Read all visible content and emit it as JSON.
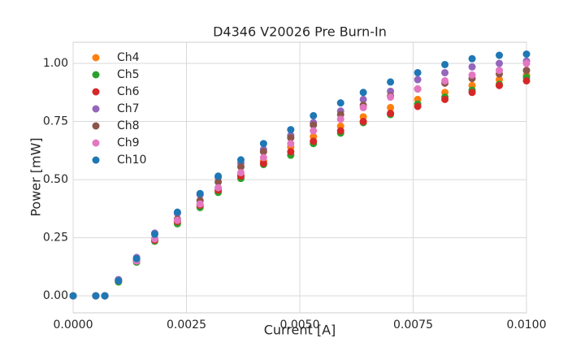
{
  "chart_data": {
    "type": "scatter",
    "title": "D4346 V20026 Pre Burn-In",
    "x_label": "Current [A]",
    "y_label": "Power [mW]",
    "x": [
      0,
      0.0005,
      0.0007,
      0.001,
      0.0014,
      0.0018,
      0.0023,
      0.0028,
      0.0032,
      0.0037,
      0.0042,
      0.0048,
      0.0053,
      0.0059,
      0.0064,
      0.007,
      0.0076,
      0.0082,
      0.0088,
      0.0094,
      0.01
    ],
    "series": [
      {
        "name": "Ch4",
        "color": "#ff7f0e",
        "values": [
          0,
          0,
          0,
          0.06,
          0.15,
          0.24,
          0.315,
          0.385,
          0.455,
          0.52,
          0.58,
          0.64,
          0.685,
          0.73,
          0.77,
          0.81,
          0.845,
          0.875,
          0.905,
          0.93,
          0.95
        ]
      },
      {
        "name": "Ch5",
        "color": "#2ca02c",
        "values": [
          0,
          0,
          0,
          0.06,
          0.145,
          0.235,
          0.31,
          0.38,
          0.445,
          0.505,
          0.565,
          0.605,
          0.655,
          0.7,
          0.745,
          0.78,
          0.825,
          0.855,
          0.885,
          0.91,
          0.94
        ]
      },
      {
        "name": "Ch6",
        "color": "#d62728",
        "values": [
          0,
          0,
          0,
          0.065,
          0.15,
          0.24,
          0.32,
          0.39,
          0.455,
          0.515,
          0.57,
          0.62,
          0.665,
          0.71,
          0.75,
          0.785,
          0.815,
          0.845,
          0.875,
          0.905,
          0.925
        ]
      },
      {
        "name": "Ch7",
        "color": "#9467bd",
        "values": [
          0,
          0,
          0,
          0.07,
          0.165,
          0.27,
          0.355,
          0.435,
          0.51,
          0.57,
          0.63,
          0.69,
          0.745,
          0.795,
          0.845,
          0.88,
          0.93,
          0.96,
          0.985,
          1.0,
          1.01
        ]
      },
      {
        "name": "Ch8",
        "color": "#8c564b",
        "values": [
          0,
          0,
          0,
          0.065,
          0.155,
          0.245,
          0.33,
          0.41,
          0.49,
          0.555,
          0.62,
          0.68,
          0.735,
          0.78,
          0.82,
          0.86,
          0.89,
          0.915,
          0.935,
          0.955,
          0.97
        ]
      },
      {
        "name": "Ch9",
        "color": "#e377c2",
        "values": [
          0,
          0,
          0,
          0.065,
          0.15,
          0.245,
          0.325,
          0.395,
          0.465,
          0.53,
          0.595,
          0.655,
          0.71,
          0.76,
          0.81,
          0.855,
          0.89,
          0.925,
          0.95,
          0.97,
          1.0
        ]
      },
      {
        "name": "Ch10",
        "color": "#1f77b4",
        "values": [
          0,
          0,
          0,
          0.065,
          0.16,
          0.265,
          0.36,
          0.44,
          0.515,
          0.585,
          0.655,
          0.715,
          0.775,
          0.83,
          0.875,
          0.92,
          0.96,
          0.995,
          1.02,
          1.035,
          1.04
        ]
      }
    ],
    "xlim": [
      0,
      0.01
    ],
    "ylim": [
      -0.073,
      1.091
    ],
    "xticks": [
      {
        "value": 0,
        "label": "0.0000"
      },
      {
        "value": 0.0025,
        "label": "0.0025"
      },
      {
        "value": 0.005,
        "label": "0.0050"
      },
      {
        "value": 0.0075,
        "label": "0.0075"
      },
      {
        "value": 0.01,
        "label": "0.0100"
      }
    ],
    "yticks": [
      {
        "value": 0,
        "label": "0.00"
      },
      {
        "value": 0.25,
        "label": "0.25"
      },
      {
        "value": 0.5,
        "label": "0.50"
      },
      {
        "value": 0.75,
        "label": "0.75"
      },
      {
        "value": 1,
        "label": "1.00"
      }
    ],
    "grid": true,
    "legend": "upper-left"
  }
}
